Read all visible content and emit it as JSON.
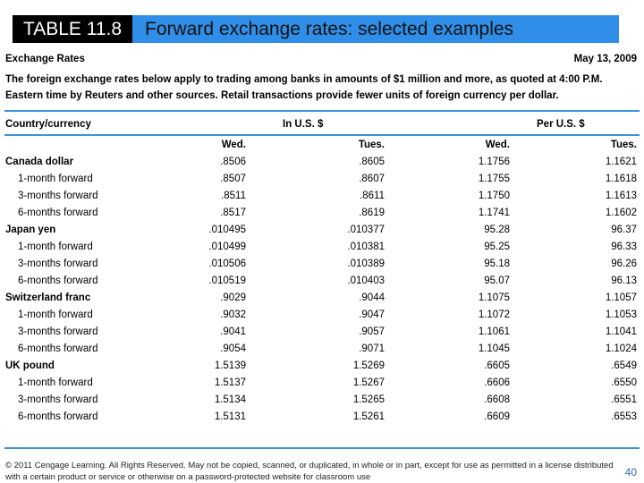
{
  "header": {
    "tag": "TABLE 11.8",
    "title": "Forward exchange rates: selected examples"
  },
  "table": {
    "title": "Exchange Rates",
    "date": "May 13, 2009",
    "note": "The foreign exchange rates below apply to trading among banks in amounts of $1 million and more, as quoted at 4:00 P.M. Eastern time by Reuters and other sources. Retail transactions provide fewer units of foreign currency per dollar.",
    "stub_header": "Country/currency",
    "group_headers": [
      "In U.S. $",
      "Per U.S. $"
    ],
    "columns": [
      "Wed.",
      "Tues.",
      "Wed.",
      "Tues."
    ],
    "groups": [
      {
        "currency": "Canada dollar",
        "values": [
          ".8506",
          ".8605",
          "1.1756",
          "1.1621"
        ],
        "forwards": [
          {
            "label": "1-month forward",
            "values": [
              ".8507",
              ".8607",
              "1.1755",
              "1.1618"
            ]
          },
          {
            "label": "3-months forward",
            "values": [
              ".8511",
              ".8611",
              "1.1750",
              "1.1613"
            ]
          },
          {
            "label": "6-months forward",
            "values": [
              ".8517",
              ".8619",
              "1.1741",
              "1.1602"
            ]
          }
        ]
      },
      {
        "currency": "Japan yen",
        "values": [
          ".010495",
          ".010377",
          "95.28",
          "96.37"
        ],
        "forwards": [
          {
            "label": "1-month forward",
            "values": [
              ".010499",
              ".010381",
              "95.25",
              "96.33"
            ]
          },
          {
            "label": "3-months forward",
            "values": [
              ".010506",
              ".010389",
              "95.18",
              "96.26"
            ]
          },
          {
            "label": "6-months forward",
            "values": [
              ".010519",
              ".010403",
              "95.07",
              "96.13"
            ]
          }
        ]
      },
      {
        "currency": "Switzerland franc",
        "values": [
          ".9029",
          ".9044",
          "1.1075",
          "1.1057"
        ],
        "forwards": [
          {
            "label": "1-month forward",
            "values": [
              ".9032",
              ".9047",
              "1.1072",
              "1.1053"
            ]
          },
          {
            "label": "3-months forward",
            "values": [
              ".9041",
              ".9057",
              "1.1061",
              "1.1041"
            ]
          },
          {
            "label": "6-months forward",
            "values": [
              ".9054",
              ".9071",
              "1.1045",
              "1.1024"
            ]
          }
        ]
      },
      {
        "currency": "UK pound",
        "values": [
          "1.5139",
          "1.5269",
          ".6605",
          ".6549"
        ],
        "forwards": [
          {
            "label": "1-month forward",
            "values": [
              "1.5137",
              "1.5267",
              ".6606",
              ".6550"
            ]
          },
          {
            "label": "3-months forward",
            "values": [
              "1.5134",
              "1.5265",
              ".6608",
              ".6551"
            ]
          },
          {
            "label": "6-months forward",
            "values": [
              "1.5131",
              "1.5261",
              ".6609",
              ".6553"
            ]
          }
        ]
      }
    ]
  },
  "footer": {
    "copyright": "© 2011 Cengage Learning. All Rights Reserved. May not be copied, scanned, or duplicated, in whole or in part, except for use as permitted in a license distributed with a certain product or service or otherwise on a password-protected website for classroom use",
    "page": "40"
  }
}
